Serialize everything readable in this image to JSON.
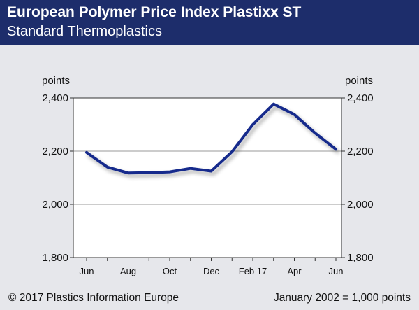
{
  "header": {
    "title": "European Polymer Price Index Plastixx ST",
    "subtitle": "Standard Thermoplastics"
  },
  "footer": {
    "copyright": "© 2017 Plastics Information Europe",
    "note": "January 2002 = 1,000 points"
  },
  "colors": {
    "header_bg": "#1d2d6b",
    "panel_bg": "#e6e7eb",
    "line": "#132a8c"
  },
  "chart_data": {
    "type": "line",
    "title": "European Polymer Price Index Plastixx ST",
    "subtitle": "Standard Thermoplastics",
    "ylabel_left": "points",
    "ylabel_right": "points",
    "ylim": [
      1800,
      2400
    ],
    "yticks": [
      "1,800",
      "2,000",
      "2,200",
      "2,400"
    ],
    "ytick_values": [
      1800,
      2000,
      2200,
      2400
    ],
    "grid": true,
    "x": [
      "Jun 2016",
      "Jul 2016",
      "Aug 2016",
      "Sep 2016",
      "Oct 2016",
      "Nov 2016",
      "Dec 2016",
      "Jan 2017",
      "Feb 2017",
      "Mar 2017",
      "Apr 2017",
      "May 2017",
      "Jun 2017"
    ],
    "xtick_labels": [
      "Jun",
      "",
      "Aug",
      "",
      "Oct",
      "",
      "Dec",
      "",
      "Feb 17",
      "",
      "Apr",
      "",
      "Jun"
    ],
    "series": [
      {
        "values": [
          2195,
          2140,
          2118,
          2119,
          2122,
          2135,
          2125,
          2198,
          2300,
          2377,
          2338,
          2268,
          2207
        ]
      }
    ]
  }
}
